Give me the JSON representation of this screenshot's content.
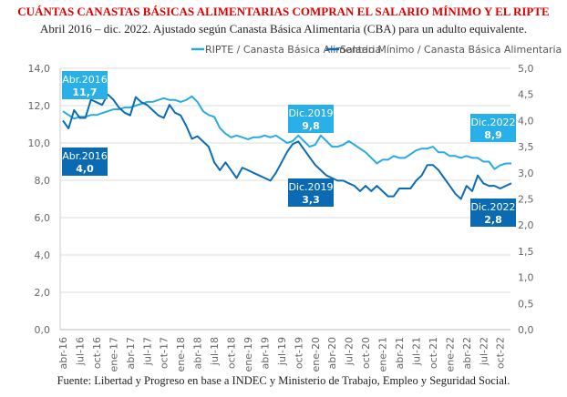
{
  "title": "CUÁNTAS CANASTAS BÁSICAS ALIMENTARIAS COMPRAN EL SALARIO MÍNIMO Y EL RIPTE",
  "subtitle": "Abril 2016 – dic. 2022. Ajustado según Canasta Básica Alimentaria (CBA) para un adulto equivalente.",
  "source": "Fuente: Libertad y Progreso en base a INDEC y Ministerio de Trabajo, Empleo y Seguridad Social.",
  "chart_data": {
    "type": "line",
    "legend_position": "top",
    "grid": true,
    "y_left": {
      "range": [
        0,
        14
      ],
      "ticks": [
        "0,0",
        "2,0",
        "4,0",
        "6,0",
        "8,0",
        "10,0",
        "12,0",
        "14,0"
      ]
    },
    "y_right": {
      "range": [
        0,
        5
      ],
      "ticks": [
        "0,0",
        "0,5",
        "1,0",
        "1,5",
        "2,0",
        "2,5",
        "3,0",
        "3,5",
        "4,0",
        "4,5",
        "5,0"
      ]
    },
    "x_ticks": [
      "abr-16",
      "jul-16",
      "oct-16",
      "ene-17",
      "abr-17",
      "jul-17",
      "oct-17",
      "ene-18",
      "abr-18",
      "jul-18",
      "oct-18",
      "ene-19",
      "abr-19",
      "jul-19",
      "oct-19",
      "ene-20",
      "abr-20",
      "jul-20",
      "oct-20",
      "ene-21",
      "abr-21",
      "jul-21",
      "oct-21",
      "ene-22",
      "abr-22",
      "jul-22",
      "oct-22"
    ],
    "x_range": [
      "2016-04",
      "2022-12"
    ],
    "series": [
      {
        "name": "RIPTE / Canasta Básica Alimentaria",
        "axis": "left",
        "color": "#29abe2",
        "values": [
          11.7,
          11.5,
          11.3,
          11.4,
          11.4,
          11.5,
          11.5,
          11.6,
          11.7,
          11.8,
          11.8,
          11.9,
          11.9,
          12.0,
          12.1,
          12.2,
          12.2,
          12.3,
          12.4,
          12.3,
          12.3,
          12.2,
          12.3,
          12.5,
          12.2,
          11.7,
          11.5,
          11.4,
          10.8,
          10.5,
          10.3,
          10.4,
          10.3,
          10.2,
          10.3,
          10.3,
          10.4,
          10.3,
          10.4,
          10.2,
          10.0,
          10.1,
          10.4,
          10.1,
          9.8,
          9.9,
          10.4,
          10.1,
          9.8,
          9.8,
          9.9,
          10.1,
          9.9,
          9.7,
          9.5,
          9.2,
          8.9,
          9.1,
          9.1,
          9.3,
          9.2,
          9.2,
          9.4,
          9.6,
          9.7,
          9.7,
          9.8,
          9.5,
          9.5,
          9.3,
          9.3,
          9.2,
          9.3,
          9.2,
          9.2,
          9.0,
          9.0,
          8.6,
          8.8,
          8.9,
          8.9
        ]
      },
      {
        "name": "Salario Mínimo / Canasta Básica Alimentaria",
        "axis": "right",
        "color": "#0b6cb8",
        "values": [
          4.0,
          3.85,
          4.2,
          4.05,
          4.05,
          4.4,
          4.35,
          4.3,
          4.5,
          4.4,
          4.25,
          4.15,
          4.1,
          4.45,
          4.35,
          4.3,
          4.2,
          4.1,
          4.05,
          4.3,
          4.15,
          4.1,
          3.9,
          3.65,
          3.7,
          3.6,
          3.5,
          3.2,
          3.05,
          3.2,
          3.05,
          2.9,
          3.1,
          3.05,
          3.0,
          2.95,
          2.9,
          2.85,
          3.0,
          3.2,
          3.4,
          3.55,
          3.6,
          3.45,
          3.3,
          3.15,
          3.05,
          2.95,
          2.9,
          2.85,
          2.85,
          2.8,
          2.75,
          2.65,
          2.75,
          2.65,
          2.75,
          2.65,
          2.55,
          2.55,
          2.7,
          2.7,
          2.7,
          2.85,
          2.95,
          3.15,
          3.15,
          3.05,
          2.9,
          2.75,
          2.6,
          2.5,
          2.75,
          2.65,
          2.95,
          2.8,
          2.75,
          2.75,
          2.7,
          2.75,
          2.8
        ]
      }
    ],
    "annotations": [
      {
        "series": 0,
        "label": "Abr.2016",
        "value": "11,7"
      },
      {
        "series": 1,
        "label": "Abr.2016",
        "value": "4,0"
      },
      {
        "series": 0,
        "label": "Dic.2019",
        "value": "9,8"
      },
      {
        "series": 1,
        "label": "Dic.2019",
        "value": "3,3"
      },
      {
        "series": 0,
        "label": "Dic.2022",
        "value": "8,9"
      },
      {
        "series": 1,
        "label": "Dic.2022",
        "value": "2,8"
      }
    ]
  }
}
